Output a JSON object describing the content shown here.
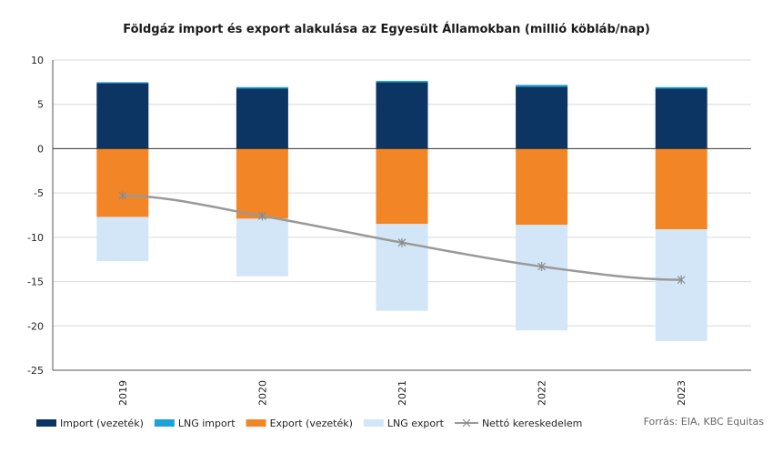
{
  "chart_data": {
    "type": "bar",
    "title": "Földgáz import és export alakulása az Egyesült Államokban (millió köbláb/nap)",
    "categories": [
      "2019",
      "2020",
      "2021",
      "2022",
      "2023"
    ],
    "ylim": [
      -25,
      10
    ],
    "yticks": [
      10,
      5,
      0,
      -5,
      -10,
      -15,
      -20,
      -25
    ],
    "stacked": true,
    "grid": true,
    "legend_position": "bottom-left",
    "series": [
      {
        "name": "Import (vezeték)",
        "type": "bar",
        "color": "#0d3563",
        "values": [
          7.4,
          6.8,
          7.5,
          7.0,
          6.8
        ]
      },
      {
        "name": "LNG import",
        "type": "bar",
        "color": "#1aa3d9",
        "values": [
          0.1,
          0.15,
          0.15,
          0.2,
          0.15
        ]
      },
      {
        "name": "Export (vezeték)",
        "type": "bar",
        "color": "#f28627",
        "values": [
          -7.7,
          -7.9,
          -8.5,
          -8.6,
          -9.1
        ]
      },
      {
        "name": "LNG export",
        "type": "bar",
        "color": "#d3e6f7",
        "values": [
          -5.0,
          -6.5,
          -9.8,
          -11.9,
          -12.6
        ]
      },
      {
        "name": "Nettó kereskedelem",
        "type": "line",
        "color": "#999999",
        "values": [
          -5.3,
          -7.6,
          -10.6,
          -13.3,
          -14.8
        ]
      }
    ],
    "source": "Forrás: EIA, KBC Equitas"
  }
}
